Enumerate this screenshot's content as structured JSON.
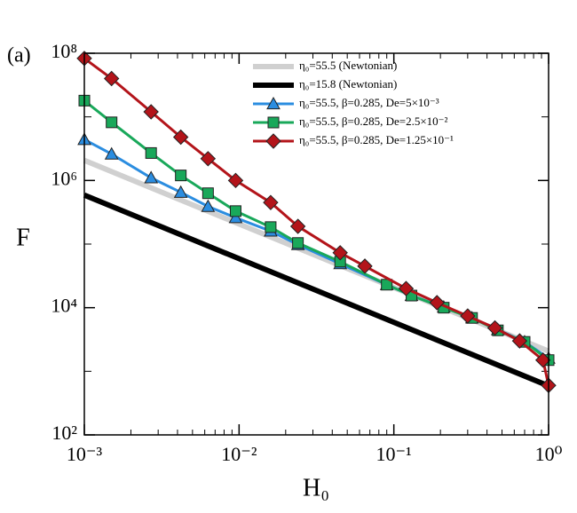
{
  "chart_data": {
    "type": "line",
    "panel_label": "(a)",
    "xlabel": "H₀",
    "ylabel": "F",
    "xscale": "log",
    "yscale": "log",
    "xlim": [
      0.001,
      1
    ],
    "ylim": [
      100,
      100000000
    ],
    "xticks": [
      {
        "value": 0.001,
        "label": "10⁻³"
      },
      {
        "value": 0.01,
        "label": "10⁻²"
      },
      {
        "value": 0.1,
        "label": "10⁻¹"
      },
      {
        "value": 1,
        "label": "10⁰"
      }
    ],
    "yticks": [
      {
        "value": 100,
        "label": "10²"
      },
      {
        "value": 10000,
        "label": "10⁴"
      },
      {
        "value": 1000000,
        "label": "10⁶"
      },
      {
        "value": 100000000,
        "label": "10⁸"
      }
    ],
    "xminor_ticks": [
      0.002,
      0.003,
      0.004,
      0.005,
      0.006,
      0.007,
      0.008,
      0.009,
      0.02,
      0.03,
      0.04,
      0.05,
      0.06,
      0.07,
      0.08,
      0.09,
      0.2,
      0.3,
      0.4,
      0.5,
      0.6,
      0.7,
      0.8,
      0.9
    ],
    "yminor_ticks": [
      1000,
      100000,
      10000000
    ],
    "legend": "upper right",
    "series": [
      {
        "name": "η₀=55.5 (Newtonian)",
        "color": "#d0d0d0",
        "width": 6,
        "x": [
          0.001,
          1
        ],
        "values": [
          2070000,
          2070
        ]
      },
      {
        "name": "η₀=15.8 (Newtonian)",
        "color": "#000000",
        "width": 6,
        "x": [
          0.001,
          1
        ],
        "values": [
          590000,
          590
        ]
      },
      {
        "name": "η₀=55.5, β=0.285, De=5×10⁻³",
        "color": "#2b8de0",
        "width": 3,
        "marker": "triangle",
        "x": [
          0.001,
          0.0015,
          0.0027,
          0.0042,
          0.0063,
          0.0095,
          0.016,
          0.024,
          0.045,
          0.09,
          0.13,
          0.21,
          0.32,
          0.47,
          0.7,
          1
        ],
        "values": [
          4400000,
          2600000,
          1100000,
          650000,
          390000,
          260000,
          160000,
          98000,
          49000,
          23000,
          15500,
          10200,
          6900,
          4500,
          2900,
          1600
        ]
      },
      {
        "name": "η₀=55.5, β=0.285, De=2.5×10⁻²",
        "color": "#19a85a",
        "width": 3,
        "marker": "square",
        "x": [
          0.001,
          0.0015,
          0.0027,
          0.0042,
          0.0063,
          0.0095,
          0.016,
          0.024,
          0.045,
          0.09,
          0.13,
          0.21,
          0.32,
          0.47,
          0.7,
          1
        ],
        "values": [
          18000000,
          8200000,
          2700000,
          1200000,
          630000,
          330000,
          185000,
          104000,
          53000,
          23000,
          15500,
          10000,
          6900,
          4400,
          2900,
          1500
        ]
      },
      {
        "name": "η₀=55.5, β=0.285, De=1.25×10⁻¹",
        "color": "#b3141a",
        "width": 3,
        "marker": "diamond",
        "x": [
          0.001,
          0.0015,
          0.0027,
          0.0042,
          0.0063,
          0.0095,
          0.016,
          0.024,
          0.045,
          0.065,
          0.12,
          0.19,
          0.3,
          0.45,
          0.65,
          0.92,
          1
        ],
        "values": [
          83000000,
          40000000,
          12000000,
          4800000,
          2200000,
          1000000,
          450000,
          190000,
          73000,
          45000,
          20000,
          12000,
          7400,
          4800,
          3000,
          1500,
          600
        ]
      }
    ]
  }
}
